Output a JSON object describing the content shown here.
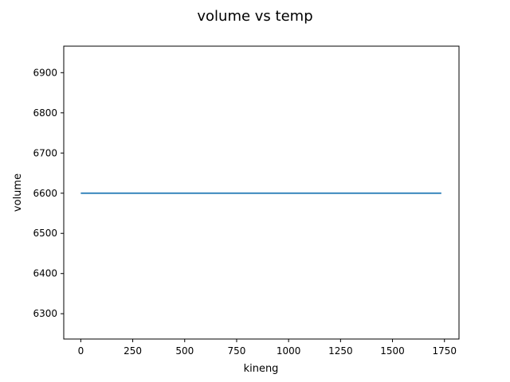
{
  "chart_data": {
    "type": "line",
    "title": "volume vs temp",
    "xlabel": "kineng",
    "ylabel": "volume",
    "xlim": [
      -82,
      1820
    ],
    "ylim": [
      6237,
      6966
    ],
    "x_ticks": [
      0,
      250,
      500,
      750,
      1000,
      1250,
      1500,
      1750
    ],
    "x_tick_labels": [
      "0",
      "250",
      "500",
      "750",
      "1000",
      "1250",
      "1500",
      "1750"
    ],
    "y_ticks": [
      6300,
      6400,
      6500,
      6600,
      6700,
      6800,
      6900
    ],
    "y_tick_labels": [
      "6300",
      "6400",
      "6500",
      "6600",
      "6700",
      "6800",
      "6900"
    ],
    "grid": false,
    "series": [
      {
        "color": "#1f77b4",
        "x": [
          0,
          250,
          500,
          750,
          1000,
          1250,
          1500,
          1735
        ],
        "y": [
          6600,
          6600,
          6600,
          6600,
          6600,
          6600,
          6600,
          6600
        ]
      }
    ]
  }
}
